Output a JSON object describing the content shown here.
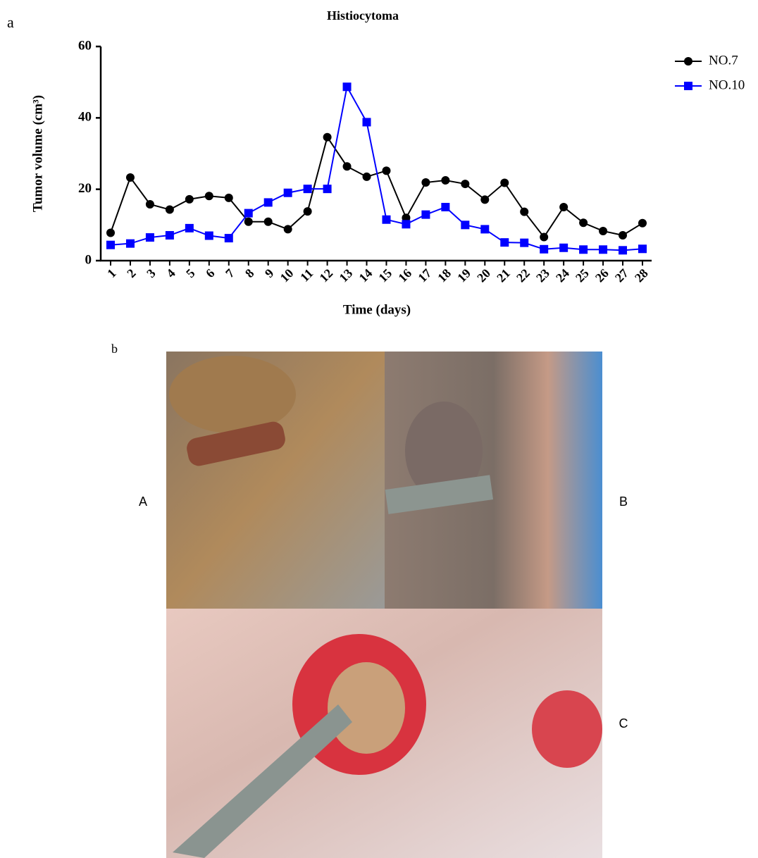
{
  "chart_data": {
    "type": "line",
    "title": "Histiocytoma",
    "x_label": "Time (days)",
    "y_label": "Tumor volume (cm³)",
    "categories": [
      "1",
      "2",
      "3",
      "4",
      "5",
      "6",
      "7",
      "8",
      "9",
      "10",
      "11",
      "12",
      "13",
      "14",
      "15",
      "16",
      "17",
      "18",
      "19",
      "20",
      "21",
      "22",
      "23",
      "24",
      "25",
      "26",
      "27",
      "28"
    ],
    "series": [
      {
        "name": "NO.7",
        "color": "#000000",
        "marker": "circle",
        "values": [
          7.8,
          23.3,
          15.8,
          14.3,
          17.2,
          18.1,
          17.6,
          10.9,
          10.9,
          8.8,
          13.8,
          34.6,
          26.4,
          23.5,
          25.2,
          12,
          21.9,
          22.5,
          21.5,
          17.1,
          21.8,
          13.7,
          6.6,
          15,
          10.6,
          8.3,
          7.1,
          10.5
        ]
      },
      {
        "name": "NO.10",
        "color": "#0000ff",
        "marker": "square",
        "values": [
          4.4,
          4.8,
          6.5,
          7.1,
          9.1,
          7,
          6.3,
          13.3,
          16.3,
          19,
          20.1,
          20.1,
          48.7,
          38.8,
          11.5,
          10.2,
          12.9,
          15,
          10,
          8.8,
          5.1,
          5,
          3.2,
          3.6,
          3.1,
          3.1,
          2.9,
          3.3
        ]
      }
    ],
    "ylim": [
      0,
      60
    ],
    "yticks": [
      0,
      20,
      40,
      60
    ],
    "grid": false,
    "legend": "right"
  },
  "figure": {
    "panel_a": "a",
    "panel_b": "b",
    "photo_labels": [
      "A",
      "B",
      "C"
    ]
  }
}
